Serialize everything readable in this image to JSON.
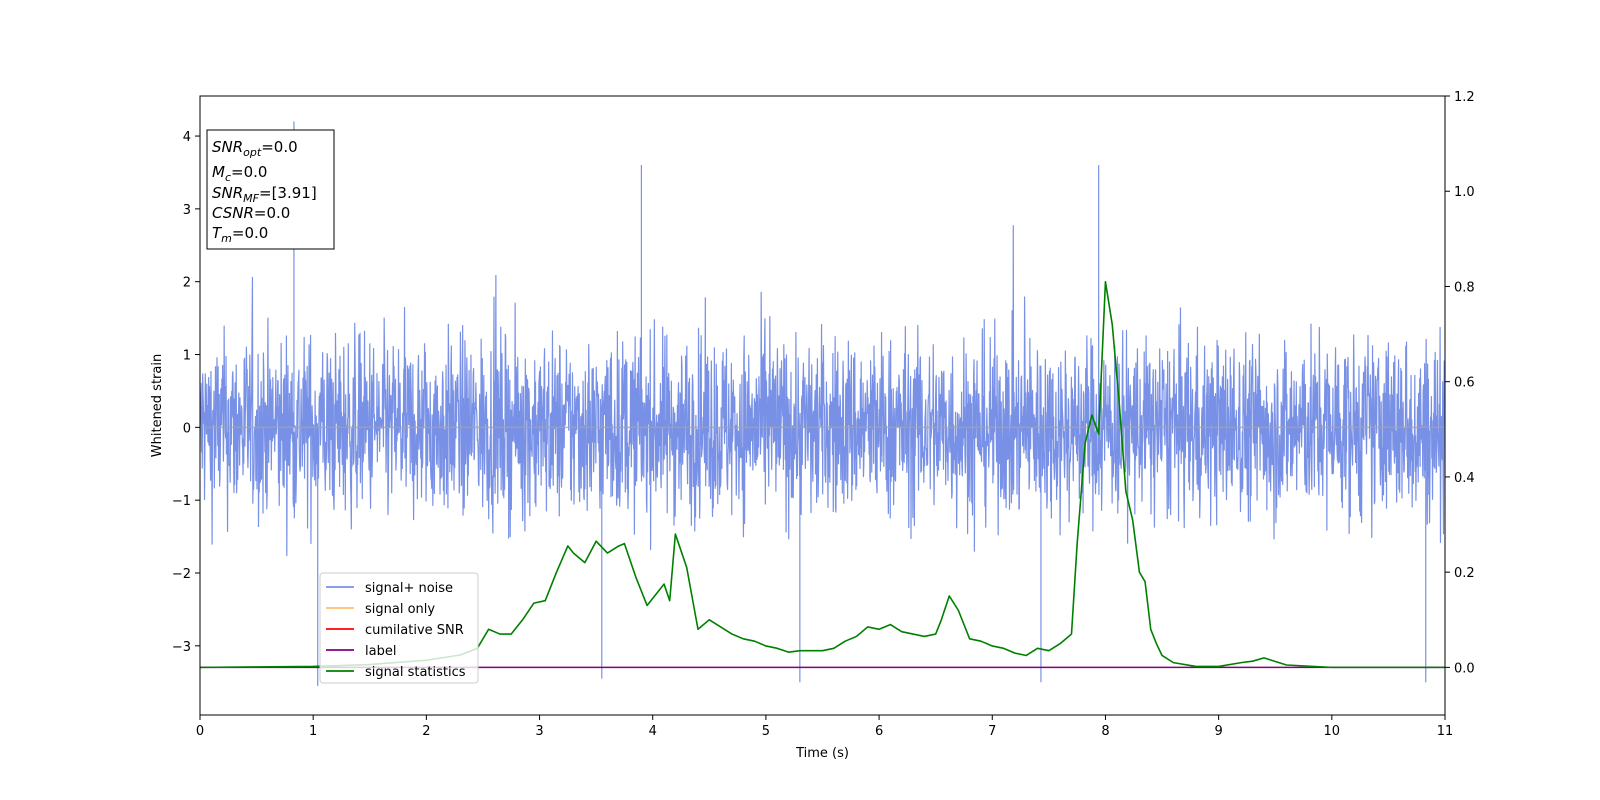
{
  "chart_data": {
    "type": "line",
    "xlabel": "Time (s)",
    "ylabel": "Whitened strain",
    "xlim": [
      0,
      11
    ],
    "ylim": [
      -3.95,
      4.55
    ],
    "y2lim": [
      -0.1,
      1.2
    ],
    "x_ticks": [
      0,
      1,
      2,
      3,
      4,
      5,
      6,
      7,
      8,
      9,
      10,
      11
    ],
    "y_ticks": [
      -3,
      -2,
      -1,
      0,
      1,
      2,
      3,
      4
    ],
    "y2_ticks": [
      0.0,
      0.2,
      0.4,
      0.6,
      0.8,
      1.0,
      1.2
    ],
    "colors": {
      "signal_noise": "#7891e6",
      "signal_only": "#fdbf6f",
      "cumulative_snr": "#ff0000",
      "label": "#800080",
      "signal_statistics": "#008000"
    },
    "legend": {
      "placement": "lower-left",
      "entries": [
        "signal+ noise",
        "signal only",
        "cumilative SNR",
        "label",
        "signal statistics"
      ]
    },
    "stats_box": {
      "placement": "upper-left",
      "lines": [
        {
          "base": "SNR",
          "sub": "opt",
          "value": "=0.0"
        },
        {
          "base": "M",
          "sub": "c",
          "value": "=0.0"
        },
        {
          "base": "SNR",
          "sub": "MF",
          "value": "=[3.91]"
        },
        {
          "base": "CSNR",
          "sub": "",
          "value": "=0.0"
        },
        {
          "base": "T",
          "sub": "m",
          "value": "=0.0"
        }
      ]
    },
    "series": [
      {
        "name": "signal+ noise",
        "description": "whitened strain noise, approx. uniform band",
        "typical_range": [
          -2.0,
          2.0
        ],
        "extremes": [
          -3.55,
          4.2
        ]
      },
      {
        "name": "signal only",
        "value": 0.0
      },
      {
        "name": "label",
        "axis": "right",
        "value": 0.0
      },
      {
        "name": "signal statistics",
        "axis": "right",
        "x": [
          0,
          0.5,
          1.0,
          1.5,
          2.0,
          2.3,
          2.45,
          2.55,
          2.65,
          2.75,
          2.85,
          2.95,
          3.05,
          3.15,
          3.25,
          3.3,
          3.4,
          3.5,
          3.6,
          3.7,
          3.75,
          3.85,
          3.95,
          4.05,
          4.1,
          4.15,
          4.2,
          4.3,
          4.4,
          4.5,
          4.6,
          4.7,
          4.8,
          4.9,
          5.0,
          5.1,
          5.2,
          5.3,
          5.4,
          5.5,
          5.6,
          5.7,
          5.8,
          5.9,
          6.0,
          6.1,
          6.2,
          6.3,
          6.4,
          6.5,
          6.55,
          6.62,
          6.7,
          6.8,
          6.9,
          7.0,
          7.1,
          7.2,
          7.3,
          7.4,
          7.5,
          7.6,
          7.7,
          7.75,
          7.82,
          7.88,
          7.94,
          8.0,
          8.06,
          8.12,
          8.18,
          8.24,
          8.3,
          8.35,
          8.4,
          8.45,
          8.5,
          8.6,
          8.8,
          9.0,
          9.2,
          9.3,
          9.4,
          9.6,
          10.0,
          11.0
        ],
        "y": [
          0.0,
          0.001,
          0.002,
          0.006,
          0.015,
          0.026,
          0.04,
          0.08,
          0.07,
          0.07,
          0.1,
          0.135,
          0.14,
          0.2,
          0.255,
          0.24,
          0.22,
          0.265,
          0.24,
          0.255,
          0.26,
          0.19,
          0.13,
          0.16,
          0.175,
          0.14,
          0.28,
          0.21,
          0.08,
          0.1,
          0.085,
          0.07,
          0.06,
          0.055,
          0.045,
          0.04,
          0.032,
          0.035,
          0.035,
          0.035,
          0.04,
          0.055,
          0.065,
          0.085,
          0.08,
          0.09,
          0.075,
          0.07,
          0.065,
          0.07,
          0.1,
          0.15,
          0.12,
          0.06,
          0.055,
          0.045,
          0.04,
          0.03,
          0.025,
          0.04,
          0.035,
          0.05,
          0.07,
          0.26,
          0.47,
          0.53,
          0.49,
          0.81,
          0.72,
          0.56,
          0.37,
          0.31,
          0.2,
          0.18,
          0.08,
          0.05,
          0.025,
          0.01,
          0.002,
          0.002,
          0.01,
          0.013,
          0.02,
          0.005,
          0.0,
          0.0
        ]
      }
    ]
  }
}
